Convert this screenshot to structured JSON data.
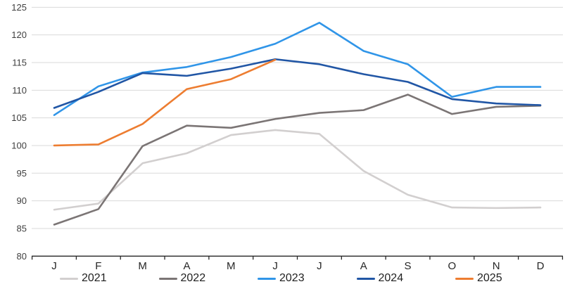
{
  "chart_data": {
    "type": "line",
    "title": "",
    "xlabel": "",
    "ylabel": "",
    "ylim": [
      80,
      125
    ],
    "y_ticks": [
      80,
      85,
      90,
      95,
      100,
      105,
      110,
      115,
      120,
      125
    ],
    "categories": [
      "J",
      "F",
      "M",
      "A",
      "M",
      "J",
      "J",
      "A",
      "S",
      "O",
      "N",
      "D"
    ],
    "grid": "horizontal",
    "legend_position": "bottom",
    "gridline_color": "#d9d9d9",
    "axis_line_color": "#262626",
    "series": [
      {
        "name": "2021",
        "color": "#d2cfcf",
        "values": [
          88.4,
          89.5,
          96.8,
          98.6,
          101.9,
          102.8,
          102.1,
          95.4,
          91.1,
          88.8,
          88.7,
          88.8
        ]
      },
      {
        "name": "2022",
        "color": "#7b7575",
        "values": [
          85.7,
          88.5,
          99.9,
          103.6,
          103.2,
          104.8,
          105.9,
          106.4,
          109.2,
          105.7,
          107.0,
          107.2
        ]
      },
      {
        "name": "2023",
        "color": "#3095e8",
        "values": [
          105.5,
          110.7,
          113.2,
          114.2,
          116.0,
          118.4,
          122.2,
          117.1,
          114.7,
          108.8,
          110.6,
          110.6
        ]
      },
      {
        "name": "2024",
        "color": "#2156a5",
        "values": [
          106.8,
          109.7,
          113.1,
          112.6,
          113.9,
          115.6,
          114.7,
          112.9,
          111.5,
          108.4,
          107.6,
          107.3
        ]
      },
      {
        "name": "2025",
        "color": "#ed7d31",
        "values": [
          100.0,
          100.2,
          103.9,
          110.2,
          112.0,
          115.5,
          null,
          null,
          null,
          null,
          null,
          null
        ]
      }
    ]
  }
}
